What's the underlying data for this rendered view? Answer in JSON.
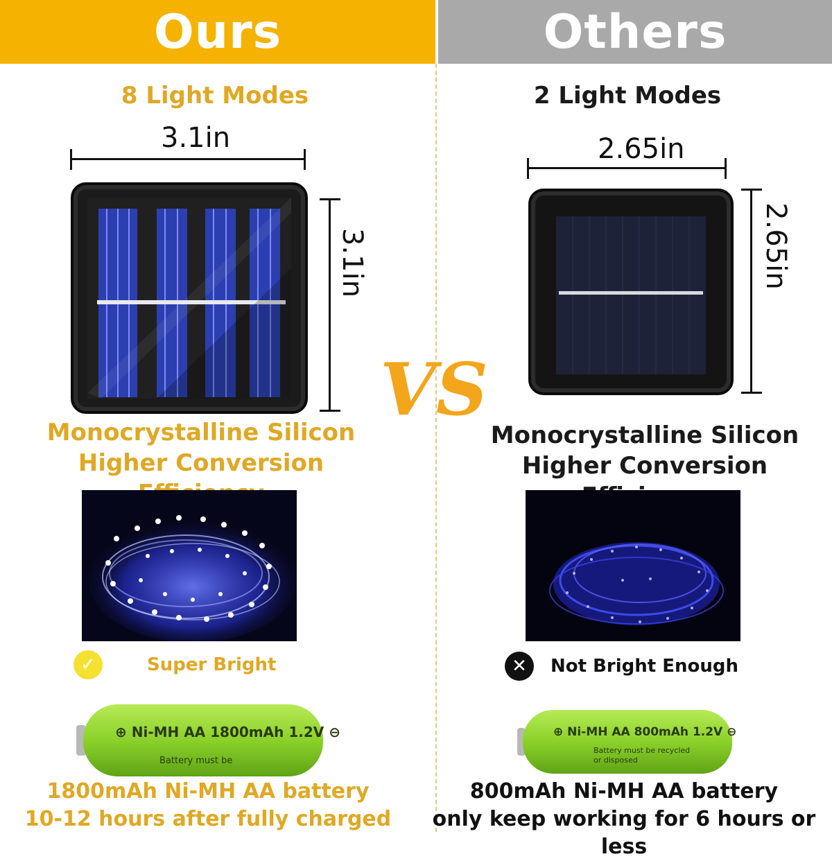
{
  "header": {
    "ours": "Ours",
    "others": "Others"
  },
  "ours": {
    "light_modes": "8 Light Modes",
    "width": "3.1in",
    "height": "3.1in",
    "panel_type_line1": "Monocrystalline Silicon",
    "panel_type_line2": "Higher Conversion Efficiency",
    "brightness": "Super Bright",
    "battery_label": "⊕ Ni-MH  AA 1800mAh 1.2V ⊖",
    "battery_sublabel": "Battery must be",
    "battery_line1": "1800mAh Ni-MH AA battery",
    "battery_line2": "10-12 hours after fully charged"
  },
  "others": {
    "light_modes": "2 Light Modes",
    "width": "2.65in",
    "height": "2.65in",
    "panel_type_line1": "Monocrystalline Silicon",
    "panel_type_line2": "Higher Conversion Efficiency",
    "brightness": "Not Bright Enough",
    "battery_label": "⊕ Ni-MH  AA 800mAh 1.2V ⊖",
    "battery_sublabel": "Battery must be recycled or disposed",
    "battery_line1": "800mAh Ni-MH AA battery",
    "battery_line2": "only keep working for 6 hours or less"
  },
  "vs": "VS",
  "colors": {
    "accent": "#f5b300",
    "gray_header": "#a9a9a9",
    "ours_text": "#e0a823",
    "battery_green": "#8bd12a"
  },
  "icons": {
    "ours_status": "check-circle-icon",
    "others_status": "x-circle-icon"
  }
}
